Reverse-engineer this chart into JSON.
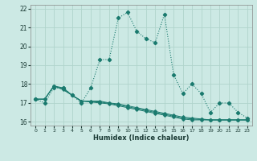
{
  "xlabel": "Humidex (Indice chaleur)",
  "xlim": [
    -0.5,
    23.5
  ],
  "ylim": [
    15.8,
    22.2
  ],
  "yticks": [
    16,
    17,
    18,
    19,
    20,
    21,
    22
  ],
  "xticks": [
    0,
    1,
    2,
    3,
    4,
    5,
    6,
    7,
    8,
    9,
    10,
    11,
    12,
    13,
    14,
    15,
    16,
    17,
    18,
    19,
    20,
    21,
    22,
    23
  ],
  "xtick_labels": [
    "0",
    "1",
    "2",
    "3",
    "4",
    "5",
    "6",
    "7",
    "8",
    "9",
    "10",
    "11",
    "12",
    "13",
    "14",
    "15",
    "16",
    "17",
    "18",
    "19",
    "20",
    "21",
    "22",
    "23"
  ],
  "background_color": "#cce9e4",
  "grid_color": "#b0d4cc",
  "line_color": "#1a7a6e",
  "series_main": [
    17.2,
    17.0,
    17.8,
    17.8,
    17.4,
    17.0,
    17.8,
    19.3,
    19.3,
    21.5,
    21.8,
    20.8,
    20.4,
    20.2,
    21.7,
    18.5,
    17.5,
    18.0,
    17.5,
    16.5,
    17.0,
    17.0,
    16.5,
    16.2
  ],
  "series_flat": [
    [
      17.2,
      17.2,
      17.9,
      17.8,
      17.4,
      17.1,
      17.1,
      17.1,
      17.0,
      16.95,
      16.85,
      16.75,
      16.65,
      16.55,
      16.45,
      16.35,
      16.25,
      16.2,
      16.15,
      16.1,
      16.1,
      16.1,
      16.1,
      16.1
    ],
    [
      17.2,
      17.2,
      17.9,
      17.7,
      17.4,
      17.1,
      17.05,
      17.0,
      16.95,
      16.85,
      16.75,
      16.65,
      16.55,
      16.45,
      16.35,
      16.25,
      16.15,
      16.1,
      16.1,
      16.1,
      16.1,
      16.1,
      16.1,
      16.1
    ],
    [
      17.2,
      17.2,
      17.9,
      17.75,
      17.4,
      17.1,
      17.08,
      17.05,
      16.98,
      16.9,
      16.8,
      16.7,
      16.6,
      16.5,
      16.4,
      16.3,
      16.2,
      16.15,
      16.12,
      16.1,
      16.1,
      16.1,
      16.1,
      16.1
    ]
  ]
}
